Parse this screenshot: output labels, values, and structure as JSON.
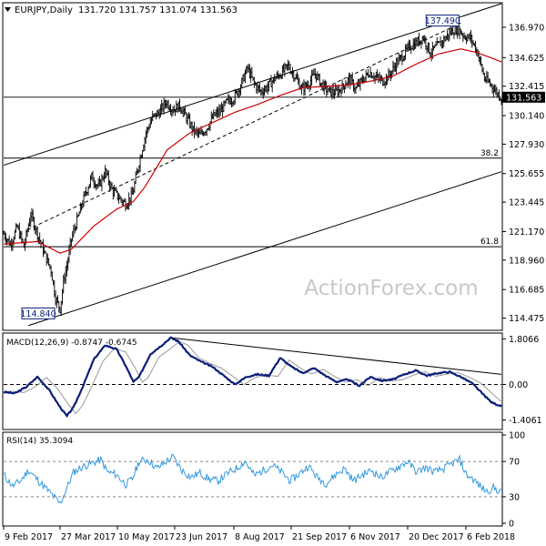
{
  "header": {
    "symbol": "EURJPY,Daily",
    "ohlc": "131.720 131.757 131.074 131.563"
  },
  "watermark": "ActionForex.com",
  "colors": {
    "candle": "#000000",
    "ma": "#cc0000",
    "macd": "#0a1e7a",
    "signal": "#999999",
    "rsi": "#3399dd",
    "channel": "#000000",
    "watermark": "#c8c8c8"
  },
  "chart_data": [
    {
      "type": "candlestick",
      "panel": "price",
      "ylim": [
        113.6,
        138.8
      ],
      "y_ticks": [
        "136.970",
        "134.625",
        "132.415",
        "130.140",
        "127.930",
        "125.655",
        "123.445",
        "121.170",
        "118.960",
        "116.685",
        "114.475"
      ],
      "x_ticks": [
        "9 Feb 2017",
        "27 Mar 2017",
        "10 May 2017",
        "23 Jun 2017",
        "8 Aug 2017",
        "21 Sep 2017",
        "6 Nov 2017",
        "20 Dec 2017",
        "6 Feb 2018"
      ],
      "close_anchors": [
        [
          0,
          121.0
        ],
        [
          6,
          120.2
        ],
        [
          12,
          121.5
        ],
        [
          18,
          120.0
        ],
        [
          24,
          122.5
        ],
        [
          30,
          121.0
        ],
        [
          36,
          119.5
        ],
        [
          42,
          118.2
        ],
        [
          46,
          116.0
        ],
        [
          50,
          115.2
        ],
        [
          53,
          117.3
        ],
        [
          56,
          118.5
        ],
        [
          60,
          120.6
        ],
        [
          66,
          122.3
        ],
        [
          72,
          124.0
        ],
        [
          78,
          125.4
        ],
        [
          84,
          124.6
        ],
        [
          90,
          125.8
        ],
        [
          96,
          124.4
        ],
        [
          102,
          123.8
        ],
        [
          108,
          123.3
        ],
        [
          114,
          124.0
        ],
        [
          120,
          126.5
        ],
        [
          126,
          128.8
        ],
        [
          132,
          130.0
        ],
        [
          138,
          130.4
        ],
        [
          144,
          131.2
        ],
        [
          150,
          130.6
        ],
        [
          156,
          130.9
        ],
        [
          162,
          130.0
        ],
        [
          168,
          129.0
        ],
        [
          174,
          128.6
        ],
        [
          180,
          129.2
        ],
        [
          186,
          130.1
        ],
        [
          192,
          130.5
        ],
        [
          198,
          131.2
        ],
        [
          204,
          131.5
        ],
        [
          210,
          132.5
        ],
        [
          216,
          133.8
        ],
        [
          222,
          132.6
        ],
        [
          228,
          132.0
        ],
        [
          234,
          132.4
        ],
        [
          240,
          133.0
        ],
        [
          246,
          133.4
        ],
        [
          252,
          134.0
        ],
        [
          258,
          133.2
        ],
        [
          264,
          132.2
        ],
        [
          270,
          132.6
        ],
        [
          276,
          133.4
        ],
        [
          282,
          132.5
        ],
        [
          288,
          132.0
        ],
        [
          294,
          131.9
        ],
        [
          300,
          132.3
        ],
        [
          306,
          133.0
        ],
        [
          312,
          132.2
        ],
        [
          318,
          132.9
        ],
        [
          324,
          133.5
        ],
        [
          330,
          133.1
        ],
        [
          336,
          132.8
        ],
        [
          342,
          133.3
        ],
        [
          348,
          134.2
        ],
        [
          354,
          134.8
        ],
        [
          360,
          135.5
        ],
        [
          366,
          135.8
        ],
        [
          372,
          136.2
        ],
        [
          378,
          135.0
        ],
        [
          384,
          135.5
        ],
        [
          390,
          136.0
        ],
        [
          396,
          136.6
        ],
        [
          402,
          136.9
        ],
        [
          408,
          136.3
        ],
        [
          414,
          136.1
        ],
        [
          420,
          135.0
        ],
        [
          426,
          133.0
        ],
        [
          432,
          132.5
        ],
        [
          438,
          131.8
        ],
        [
          441,
          131.56
        ]
      ],
      "ma": {
        "anchors": [
          [
            0,
            120.2
          ],
          [
            30,
            120.4
          ],
          [
            50,
            119.5
          ],
          [
            60,
            119.8
          ],
          [
            80,
            121.6
          ],
          [
            100,
            122.9
          ],
          [
            115,
            123.5
          ],
          [
            125,
            124.6
          ],
          [
            145,
            127.5
          ],
          [
            165,
            128.8
          ],
          [
            185,
            129.6
          ],
          [
            205,
            130.4
          ],
          [
            225,
            131.0
          ],
          [
            245,
            131.7
          ],
          [
            265,
            132.3
          ],
          [
            285,
            132.4
          ],
          [
            305,
            132.5
          ],
          [
            325,
            132.8
          ],
          [
            345,
            133.2
          ],
          [
            365,
            134.1
          ],
          [
            385,
            134.9
          ],
          [
            405,
            135.3
          ],
          [
            420,
            135.0
          ],
          [
            441,
            134.3
          ]
        ]
      },
      "channel": {
        "upper": [
          [
            0,
            126.3
          ],
          [
            441,
            138.8
          ]
        ],
        "lower": [
          [
            22,
            113.9
          ],
          [
            441,
            125.8
          ]
        ],
        "dashed": [
          [
            21,
            121.3
          ],
          [
            405,
            137.3
          ]
        ]
      },
      "levels": [
        {
          "label": "38.2",
          "value": 126.85
        },
        {
          "label": "61.8",
          "value": 120.0
        }
      ],
      "current_value": 131.563,
      "current_label": "131.563",
      "callouts": [
        {
          "label": "137.490",
          "index": 405,
          "value": 137.49
        },
        {
          "label": "114.840",
          "index": 50,
          "value": 114.84
        }
      ]
    },
    {
      "type": "line",
      "panel": "macd",
      "title": "MACD(12,26,9) -0.8747 -0.6745",
      "y_ticks": [
        "1.8066",
        "0.00",
        "-1.4061"
      ],
      "ylim": [
        -1.75,
        2.0
      ],
      "zero_line": 0.0,
      "macd_anchors": [
        [
          0,
          -0.3
        ],
        [
          10,
          -0.35
        ],
        [
          20,
          -0.1
        ],
        [
          30,
          0.3
        ],
        [
          40,
          -0.2
        ],
        [
          50,
          -0.9
        ],
        [
          56,
          -1.25
        ],
        [
          62,
          -0.9
        ],
        [
          70,
          -0.1
        ],
        [
          80,
          1.0
        ],
        [
          90,
          1.55
        ],
        [
          100,
          1.4
        ],
        [
          108,
          0.75
        ],
        [
          115,
          0.1
        ],
        [
          120,
          0.3
        ],
        [
          130,
          1.2
        ],
        [
          140,
          1.55
        ],
        [
          148,
          1.85
        ],
        [
          155,
          1.7
        ],
        [
          165,
          1.15
        ],
        [
          175,
          0.9
        ],
        [
          185,
          0.7
        ],
        [
          195,
          0.35
        ],
        [
          205,
          0.0
        ],
        [
          215,
          0.3
        ],
        [
          225,
          0.4
        ],
        [
          235,
          0.35
        ],
        [
          245,
          1.05
        ],
        [
          255,
          0.7
        ],
        [
          265,
          0.45
        ],
        [
          275,
          0.65
        ],
        [
          285,
          0.35
        ],
        [
          295,
          0.1
        ],
        [
          305,
          0.2
        ],
        [
          315,
          -0.05
        ],
        [
          325,
          0.3
        ],
        [
          335,
          0.15
        ],
        [
          345,
          0.2
        ],
        [
          355,
          0.4
        ],
        [
          365,
          0.55
        ],
        [
          375,
          0.35
        ],
        [
          385,
          0.45
        ],
        [
          395,
          0.5
        ],
        [
          405,
          0.3
        ],
        [
          415,
          0.05
        ],
        [
          425,
          -0.4
        ],
        [
          432,
          -0.7
        ],
        [
          441,
          -0.87
        ]
      ],
      "signal_lag": 4,
      "trendline": [
        [
          148,
          1.85
        ],
        [
          441,
          0.4
        ]
      ]
    },
    {
      "type": "line",
      "panel": "rsi",
      "title": "RSI(14) 35.3094",
      "y_ticks": [
        "100",
        "70",
        "30",
        "0"
      ],
      "ylim": [
        0,
        100
      ],
      "levels": [
        70,
        30
      ],
      "rsi_anchors": [
        [
          0,
          55
        ],
        [
          8,
          42
        ],
        [
          15,
          48
        ],
        [
          22,
          60
        ],
        [
          28,
          52
        ],
        [
          34,
          44
        ],
        [
          40,
          36
        ],
        [
          46,
          28
        ],
        [
          50,
          22
        ],
        [
          56,
          40
        ],
        [
          62,
          58
        ],
        [
          70,
          64
        ],
        [
          78,
          68
        ],
        [
          86,
          72
        ],
        [
          92,
          58
        ],
        [
          100,
          55
        ],
        [
          108,
          44
        ],
        [
          114,
          50
        ],
        [
          120,
          70
        ],
        [
          128,
          72
        ],
        [
          136,
          62
        ],
        [
          144,
          70
        ],
        [
          150,
          75
        ],
        [
          158,
          60
        ],
        [
          166,
          52
        ],
        [
          174,
          57
        ],
        [
          182,
          50
        ],
        [
          190,
          48
        ],
        [
          198,
          56
        ],
        [
          206,
          62
        ],
        [
          214,
          70
        ],
        [
          222,
          54
        ],
        [
          230,
          60
        ],
        [
          238,
          66
        ],
        [
          246,
          58
        ],
        [
          254,
          48
        ],
        [
          262,
          56
        ],
        [
          270,
          65
        ],
        [
          278,
          52
        ],
        [
          286,
          45
        ],
        [
          294,
          55
        ],
        [
          302,
          62
        ],
        [
          310,
          48
        ],
        [
          318,
          55
        ],
        [
          326,
          60
        ],
        [
          334,
          52
        ],
        [
          342,
          58
        ],
        [
          350,
          64
        ],
        [
          358,
          70
        ],
        [
          366,
          58
        ],
        [
          374,
          63
        ],
        [
          382,
          58
        ],
        [
          390,
          62
        ],
        [
          398,
          68
        ],
        [
          404,
          72
        ],
        [
          410,
          55
        ],
        [
          416,
          50
        ],
        [
          422,
          42
        ],
        [
          428,
          36
        ],
        [
          434,
          40
        ],
        [
          441,
          35.3
        ]
      ]
    }
  ]
}
